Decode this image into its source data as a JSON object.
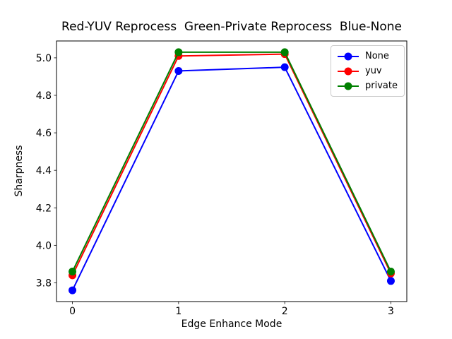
{
  "chart_data": {
    "type": "line",
    "title": "Red-YUV Reprocess  Green-Private Reprocess  Blue-None",
    "xlabel": "Edge Enhance Mode",
    "ylabel": "Sharpness",
    "xlim": [
      -0.15,
      3.15
    ],
    "ylim": [
      3.7,
      5.09
    ],
    "grid": false,
    "legend_position": "upper right",
    "x": [
      0,
      1,
      2,
      3
    ],
    "x_ticks": {
      "values": [
        0,
        1,
        2,
        3
      ],
      "labels": [
        "0",
        "1",
        "2",
        "3"
      ]
    },
    "y_ticks": {
      "values": [
        3.8,
        4.0,
        4.2,
        4.4,
        4.6,
        4.8,
        5.0
      ],
      "labels": [
        "3.8",
        "4.0",
        "4.2",
        "4.4",
        "4.6",
        "4.8",
        "5.0"
      ]
    },
    "series": [
      {
        "name": "None",
        "color": "#0000ff",
        "marker": "circle",
        "values": [
          3.76,
          4.93,
          4.95,
          3.81
        ]
      },
      {
        "name": "yuv",
        "color": "#ff0000",
        "marker": "circle",
        "values": [
          3.84,
          5.01,
          5.02,
          3.85
        ]
      },
      {
        "name": "private",
        "color": "#008000",
        "marker": "circle",
        "values": [
          3.86,
          5.03,
          5.03,
          3.86
        ]
      }
    ]
  }
}
